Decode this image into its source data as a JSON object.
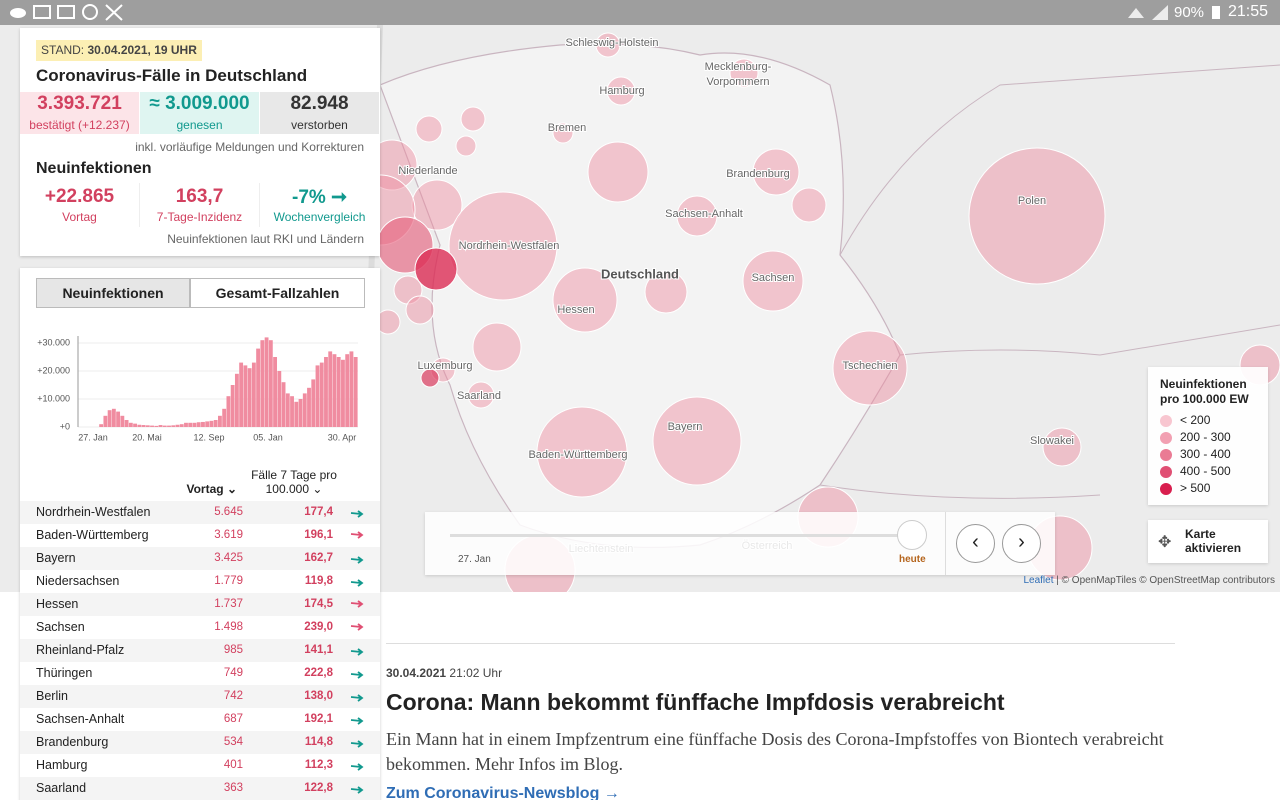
{
  "status_bar": {
    "battery": "90%",
    "time": "21:55"
  },
  "summary": {
    "stand_label": "STAND:",
    "stand": "30.04.2021, 19 UHR",
    "title": "Coronavirus-Fälle in Deutschland",
    "totals": [
      {
        "value": "3.393.721",
        "label": "bestätigt (+12.237)"
      },
      {
        "value": "≈ 3.009.000",
        "label": "genesen"
      },
      {
        "value": "82.948",
        "label": "verstorben"
      }
    ],
    "totals_note": "inkl. vorläufige Meldungen und Korrekturen",
    "new_title": "Neuinfektionen",
    "new": [
      {
        "value": "+22.865",
        "label": "Vortag"
      },
      {
        "value": "163,7",
        "label": "7-Tage-Inzidenz"
      },
      {
        "value": "-7% ➞",
        "label": "Wochenvergleich"
      }
    ],
    "new_note": "Neuinfektionen laut RKI und Ländern"
  },
  "tabs": [
    "Neuinfektionen",
    "Gesamt-Fallzahlen"
  ],
  "chart": {
    "type": "bar",
    "color": "#f08ca0",
    "values": [
      0,
      0,
      0,
      0,
      0,
      1000,
      4000,
      6000,
      6500,
      5500,
      4000,
      2500,
      1500,
      1200,
      800,
      700,
      600,
      500,
      400,
      700,
      500,
      500,
      600,
      800,
      1000,
      1500,
      1500,
      1500,
      1700,
      1800,
      2000,
      2200,
      2500,
      4000,
      6500,
      11000,
      15000,
      19000,
      23000,
      22000,
      21000,
      23000,
      28000,
      31000,
      32000,
      31000,
      25000,
      20000,
      16000,
      12000,
      11000,
      9000,
      10000,
      12000,
      14000,
      17000,
      22000,
      23000,
      25000,
      27000,
      26000,
      25000,
      24000,
      26000,
      27000,
      25000
    ],
    "ylim": [
      0,
      32500
    ],
    "yticks": [
      {
        "value": 0,
        "label": "+0"
      },
      {
        "value": 10000,
        "label": "+10.000"
      },
      {
        "value": 20000,
        "label": "+20.000"
      },
      {
        "value": 30000,
        "label": "+30.000"
      }
    ],
    "xtick_labels": [
      "27. Jan",
      "20. Mai",
      "12. Sep",
      "05. Jan",
      "30. Apr"
    ]
  },
  "table": {
    "header_vortag": "Vortag",
    "header_incidence": [
      "Fälle 7 Tage pro",
      "100.000"
    ],
    "rows": [
      {
        "name": "Nordrhein-Westfalen",
        "vortag": "5.645",
        "incidence": "177,4",
        "trend": "down"
      },
      {
        "name": "Baden-Württemberg",
        "vortag": "3.619",
        "incidence": "196,1",
        "trend": "up"
      },
      {
        "name": "Bayern",
        "vortag": "3.425",
        "incidence": "162,7",
        "trend": "down"
      },
      {
        "name": "Niedersachsen",
        "vortag": "1.779",
        "incidence": "119,8",
        "trend": "down"
      },
      {
        "name": "Hessen",
        "vortag": "1.737",
        "incidence": "174,5",
        "trend": "up"
      },
      {
        "name": "Sachsen",
        "vortag": "1.498",
        "incidence": "239,0",
        "trend": "up"
      },
      {
        "name": "Rheinland-Pfalz",
        "vortag": "985",
        "incidence": "141,1",
        "trend": "down"
      },
      {
        "name": "Thüringen",
        "vortag": "749",
        "incidence": "222,8",
        "trend": "down"
      },
      {
        "name": "Berlin",
        "vortag": "742",
        "incidence": "138,0",
        "trend": "down"
      },
      {
        "name": "Sachsen-Anhalt",
        "vortag": "687",
        "incidence": "192,1",
        "trend": "down"
      },
      {
        "name": "Brandenburg",
        "vortag": "534",
        "incidence": "114,8",
        "trend": "down"
      },
      {
        "name": "Hamburg",
        "vortag": "401",
        "incidence": "112,3",
        "trend": "down"
      },
      {
        "name": "Saarland",
        "vortag": "363",
        "incidence": "122,8",
        "trend": "down"
      }
    ]
  },
  "map": {
    "labels": [
      "Schleswig-Holstein",
      "Mecklenburg-",
      "Vorpommern",
      "Hamburg",
      "Bremen",
      "Niederlande",
      "Brandenburg",
      "Sachsen-Anhalt",
      "Nordrhein-Westfalen",
      "Deutschland",
      "Polen",
      "Sachsen",
      "Hessen",
      "Luxemburg",
      "Saarland",
      "Tschechien",
      "Bayern",
      "Baden-Württemberg",
      "Slowakei",
      "Liechtenstein",
      "Österreich"
    ],
    "legend": {
      "title": [
        "Neuinfektionen",
        "pro 100.000 EW"
      ],
      "items": [
        {
          "label": "< 200",
          "color": "#f8c6d0"
        },
        {
          "label": "200 - 300",
          "color": "#f2a0b2"
        },
        {
          "label": "300 - 400",
          "color": "#ea7b94"
        },
        {
          "label": "400 - 500",
          "color": "#e04f73"
        },
        {
          "label": "> 500",
          "color": "#d81e4e"
        }
      ]
    },
    "timeline": {
      "start": "27. Jan",
      "end": "heute"
    },
    "activate": [
      "Karte",
      "aktivieren"
    ],
    "attribution": {
      "leaflet": "Leaflet",
      "rest": "| © OpenMapTiles © OpenStreetMap contributors"
    }
  },
  "article": {
    "date": "30.04.2021",
    "time": "21:02 Uhr",
    "headline": "Corona: Mann bekommt fünffache Impfdosis verabreicht",
    "body": "Ein Mann hat in einem Impfzentrum eine fünffache Dosis des Corona-Impfstoffes von Biontech verabreicht bekommen. Mehr Infos im Blog.",
    "link": "Zum Coronavirus-Newsblog →"
  }
}
